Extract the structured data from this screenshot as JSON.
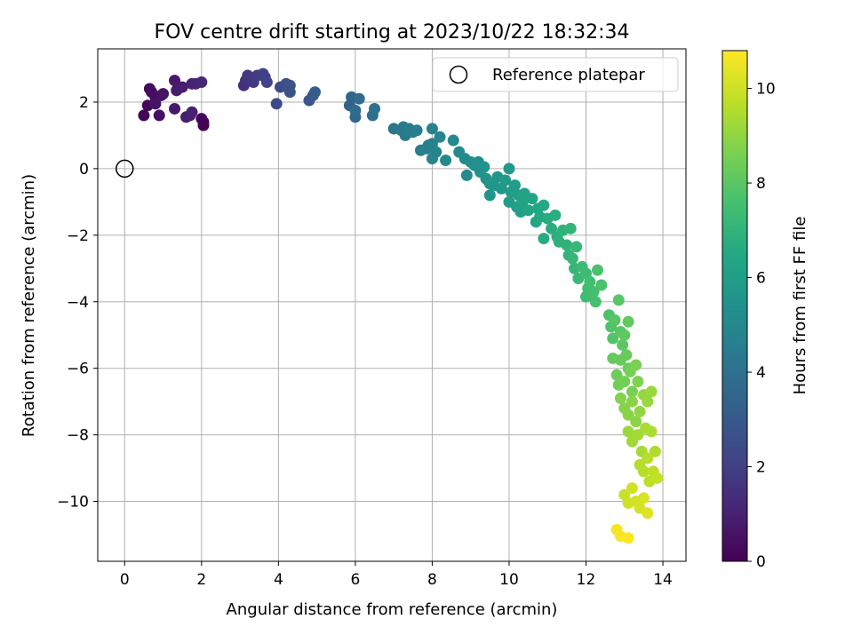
{
  "chart_data": {
    "type": "scatter",
    "title": "FOV centre drift starting at 2023/10/22 18:32:34",
    "xlabel": "Angular distance from reference (arcmin)",
    "ylabel": "Rotation from reference (arcmin)",
    "xlim": [
      -0.7,
      14.6
    ],
    "ylim": [
      -11.8,
      3.6
    ],
    "xticks": [
      0,
      2,
      4,
      6,
      8,
      10,
      12,
      14
    ],
    "yticks": [
      -10,
      -8,
      -6,
      -4,
      -2,
      0,
      2
    ],
    "xtick_labels": [
      "0",
      "2",
      "4",
      "6",
      "8",
      "10",
      "12",
      "14"
    ],
    "ytick_labels": [
      "−10",
      "−8",
      "−6",
      "−4",
      "−2",
      "0",
      "2"
    ],
    "grid": true,
    "legend": {
      "placement": "top-right",
      "entries": [
        {
          "label": "Reference platepar",
          "marker": "open-circle"
        }
      ]
    },
    "reference_point": {
      "x": 0,
      "y": 0
    },
    "colorbar": {
      "label": "Hours from first FF file",
      "colormap": "viridis",
      "range": [
        0,
        10.8
      ],
      "ticks": [
        0,
        2,
        4,
        6,
        8,
        10
      ],
      "tick_labels": [
        "0",
        "2",
        "4",
        "6",
        "8",
        "10"
      ]
    },
    "color_meaning": "hours",
    "points": [
      {
        "x": 0.5,
        "y": 1.6,
        "c": 0.1
      },
      {
        "x": 0.6,
        "y": 1.9,
        "c": 0.2
      },
      {
        "x": 0.65,
        "y": 2.4,
        "c": 0.3
      },
      {
        "x": 0.7,
        "y": 2.3,
        "c": 0.35
      },
      {
        "x": 0.8,
        "y": 2.15,
        "c": 0.4
      },
      {
        "x": 0.9,
        "y": 1.6,
        "c": 0.45
      },
      {
        "x": 0.95,
        "y": 2.2,
        "c": 0.5
      },
      {
        "x": 1.0,
        "y": 2.25,
        "c": 0.55
      },
      {
        "x": 0.8,
        "y": 1.95,
        "c": 0.6
      },
      {
        "x": 1.3,
        "y": 1.8,
        "c": 0.7
      },
      {
        "x": 1.3,
        "y": 2.65,
        "c": 0.75
      },
      {
        "x": 1.35,
        "y": 2.35,
        "c": 0.8
      },
      {
        "x": 1.5,
        "y": 2.45,
        "c": 0.85
      },
      {
        "x": 1.6,
        "y": 1.55,
        "c": 0.9
      },
      {
        "x": 1.7,
        "y": 1.6,
        "c": 0.95
      },
      {
        "x": 1.75,
        "y": 1.7,
        "c": 1.0
      },
      {
        "x": 1.75,
        "y": 2.55,
        "c": 1.05
      },
      {
        "x": 1.85,
        "y": 2.55,
        "c": 1.1
      },
      {
        "x": 2.0,
        "y": 2.6,
        "c": 1.2
      },
      {
        "x": 2.0,
        "y": 1.5,
        "c": 0.25
      },
      {
        "x": 2.05,
        "y": 1.4,
        "c": 0.15
      },
      {
        "x": 2.05,
        "y": 1.3,
        "c": 0.05
      },
      {
        "x": 3.1,
        "y": 2.5,
        "c": 1.5
      },
      {
        "x": 3.15,
        "y": 2.65,
        "c": 1.6
      },
      {
        "x": 3.2,
        "y": 2.8,
        "c": 1.7
      },
      {
        "x": 3.35,
        "y": 2.6,
        "c": 1.8
      },
      {
        "x": 3.45,
        "y": 2.8,
        "c": 1.9
      },
      {
        "x": 3.6,
        "y": 2.85,
        "c": 2.0
      },
      {
        "x": 3.65,
        "y": 2.75,
        "c": 2.1
      },
      {
        "x": 3.7,
        "y": 2.6,
        "c": 2.2
      },
      {
        "x": 3.95,
        "y": 1.95,
        "c": 2.4
      },
      {
        "x": 4.05,
        "y": 2.45,
        "c": 2.5
      },
      {
        "x": 4.2,
        "y": 2.55,
        "c": 2.6
      },
      {
        "x": 4.3,
        "y": 2.5,
        "c": 2.7
      },
      {
        "x": 4.3,
        "y": 2.3,
        "c": 2.8
      },
      {
        "x": 4.8,
        "y": 2.05,
        "c": 2.9
      },
      {
        "x": 4.9,
        "y": 2.2,
        "c": 3.0
      },
      {
        "x": 4.95,
        "y": 2.3,
        "c": 3.1
      },
      {
        "x": 5.85,
        "y": 1.9,
        "c": 3.4
      },
      {
        "x": 5.9,
        "y": 2.15,
        "c": 3.5
      },
      {
        "x": 6.0,
        "y": 1.55,
        "c": 3.6
      },
      {
        "x": 6.0,
        "y": 1.75,
        "c": 3.7
      },
      {
        "x": 6.1,
        "y": 2.1,
        "c": 3.8
      },
      {
        "x": 6.45,
        "y": 1.6,
        "c": 3.9
      },
      {
        "x": 6.5,
        "y": 1.8,
        "c": 4.0
      },
      {
        "x": 7.0,
        "y": 1.2,
        "c": 4.2
      },
      {
        "x": 7.2,
        "y": 1.15,
        "c": 4.3
      },
      {
        "x": 7.25,
        "y": 1.25,
        "c": 4.35
      },
      {
        "x": 7.3,
        "y": 1.0,
        "c": 4.4
      },
      {
        "x": 7.4,
        "y": 1.2,
        "c": 4.45
      },
      {
        "x": 7.5,
        "y": 1.1,
        "c": 4.5
      },
      {
        "x": 7.6,
        "y": 1.15,
        "c": 4.55
      },
      {
        "x": 7.7,
        "y": 0.55,
        "c": 4.6
      },
      {
        "x": 7.85,
        "y": 0.6,
        "c": 4.65
      },
      {
        "x": 7.9,
        "y": 0.7,
        "c": 4.7
      },
      {
        "x": 8.0,
        "y": 0.75,
        "c": 4.75
      },
      {
        "x": 8.0,
        "y": 1.2,
        "c": 4.8
      },
      {
        "x": 8.0,
        "y": 0.3,
        "c": 4.85
      },
      {
        "x": 8.1,
        "y": 0.5,
        "c": 4.9
      },
      {
        "x": 8.2,
        "y": 0.95,
        "c": 4.95
      },
      {
        "x": 8.35,
        "y": 0.25,
        "c": 5.0
      },
      {
        "x": 8.55,
        "y": 0.85,
        "c": 5.05
      },
      {
        "x": 8.7,
        "y": 0.5,
        "c": 5.1
      },
      {
        "x": 8.85,
        "y": 0.3,
        "c": 5.15
      },
      {
        "x": 8.9,
        "y": -0.2,
        "c": 5.2
      },
      {
        "x": 9.0,
        "y": 0.2,
        "c": 5.25
      },
      {
        "x": 9.1,
        "y": 0.1,
        "c": 5.3
      },
      {
        "x": 9.2,
        "y": 0.2,
        "c": 5.35
      },
      {
        "x": 9.25,
        "y": -0.1,
        "c": 5.4
      },
      {
        "x": 9.35,
        "y": 0.05,
        "c": 5.45
      },
      {
        "x": 9.4,
        "y": -0.3,
        "c": 5.5
      },
      {
        "x": 9.5,
        "y": -0.45,
        "c": 5.55
      },
      {
        "x": 9.5,
        "y": -0.8,
        "c": 5.6
      },
      {
        "x": 9.6,
        "y": -0.5,
        "c": 5.65
      },
      {
        "x": 9.7,
        "y": -0.25,
        "c": 5.7
      },
      {
        "x": 9.8,
        "y": -0.6,
        "c": 5.75
      },
      {
        "x": 9.9,
        "y": -0.35,
        "c": 5.8
      },
      {
        "x": 10.0,
        "y": 0.0,
        "c": 5.85
      },
      {
        "x": 10.0,
        "y": -1.0,
        "c": 5.9
      },
      {
        "x": 10.05,
        "y": -0.7,
        "c": 5.95
      },
      {
        "x": 10.15,
        "y": -0.5,
        "c": 6.0
      },
      {
        "x": 10.2,
        "y": -1.15,
        "c": 6.05
      },
      {
        "x": 10.25,
        "y": -0.8,
        "c": 6.1
      },
      {
        "x": 10.3,
        "y": -1.3,
        "c": 6.15
      },
      {
        "x": 10.35,
        "y": -1.0,
        "c": 6.2
      },
      {
        "x": 10.4,
        "y": -0.75,
        "c": 6.25
      },
      {
        "x": 10.5,
        "y": -1.25,
        "c": 6.3
      },
      {
        "x": 10.6,
        "y": -0.9,
        "c": 6.35
      },
      {
        "x": 10.7,
        "y": -1.6,
        "c": 6.4
      },
      {
        "x": 10.75,
        "y": -1.2,
        "c": 6.45
      },
      {
        "x": 10.8,
        "y": -1.45,
        "c": 6.5
      },
      {
        "x": 10.9,
        "y": -1.1,
        "c": 6.55
      },
      {
        "x": 11.0,
        "y": -1.5,
        "c": 6.6
      },
      {
        "x": 10.9,
        "y": -2.1,
        "c": 6.65
      },
      {
        "x": 11.1,
        "y": -1.8,
        "c": 6.7
      },
      {
        "x": 11.2,
        "y": -1.4,
        "c": 6.75
      },
      {
        "x": 11.25,
        "y": -2.05,
        "c": 6.8
      },
      {
        "x": 11.3,
        "y": -2.2,
        "c": 6.85
      },
      {
        "x": 11.4,
        "y": -1.85,
        "c": 6.9
      },
      {
        "x": 11.5,
        "y": -2.3,
        "c": 6.95
      },
      {
        "x": 11.55,
        "y": -2.6,
        "c": 7.0
      },
      {
        "x": 11.6,
        "y": -1.8,
        "c": 7.05
      },
      {
        "x": 11.65,
        "y": -2.7,
        "c": 7.1
      },
      {
        "x": 11.7,
        "y": -3.0,
        "c": 7.15
      },
      {
        "x": 11.75,
        "y": -2.35,
        "c": 7.2
      },
      {
        "x": 11.8,
        "y": -3.3,
        "c": 7.25
      },
      {
        "x": 11.9,
        "y": -2.95,
        "c": 7.3
      },
      {
        "x": 12.0,
        "y": -3.15,
        "c": 7.35
      },
      {
        "x": 12.05,
        "y": -3.6,
        "c": 7.4
      },
      {
        "x": 12.0,
        "y": -3.85,
        "c": 7.45
      },
      {
        "x": 12.1,
        "y": -3.4,
        "c": 7.5
      },
      {
        "x": 12.2,
        "y": -3.7,
        "c": 7.55
      },
      {
        "x": 12.25,
        "y": -4.0,
        "c": 7.6
      },
      {
        "x": 12.3,
        "y": -3.05,
        "c": 7.65
      },
      {
        "x": 12.4,
        "y": -3.5,
        "c": 7.7
      },
      {
        "x": 12.6,
        "y": -4.4,
        "c": 7.75
      },
      {
        "x": 12.65,
        "y": -4.75,
        "c": 7.8
      },
      {
        "x": 12.7,
        "y": -5.1,
        "c": 7.85
      },
      {
        "x": 12.75,
        "y": -4.55,
        "c": 7.9
      },
      {
        "x": 12.85,
        "y": -3.95,
        "c": 7.95
      },
      {
        "x": 12.9,
        "y": -4.9,
        "c": 8.0
      },
      {
        "x": 12.95,
        "y": -5.3,
        "c": 8.05
      },
      {
        "x": 13.0,
        "y": -5.0,
        "c": 8.1
      },
      {
        "x": 13.1,
        "y": -4.6,
        "c": 8.15
      },
      {
        "x": 12.7,
        "y": -5.7,
        "c": 8.2
      },
      {
        "x": 12.9,
        "y": -5.75,
        "c": 8.25
      },
      {
        "x": 13.05,
        "y": -5.6,
        "c": 8.3
      },
      {
        "x": 13.1,
        "y": -6.0,
        "c": 8.35
      },
      {
        "x": 12.8,
        "y": -6.2,
        "c": 8.4
      },
      {
        "x": 12.85,
        "y": -6.5,
        "c": 8.45
      },
      {
        "x": 13.0,
        "y": -6.4,
        "c": 8.5
      },
      {
        "x": 13.15,
        "y": -6.1,
        "c": 8.55
      },
      {
        "x": 13.2,
        "y": -6.7,
        "c": 8.6
      },
      {
        "x": 13.3,
        "y": -5.9,
        "c": 8.65
      },
      {
        "x": 13.35,
        "y": -6.4,
        "c": 8.7
      },
      {
        "x": 12.9,
        "y": -6.9,
        "c": 8.75
      },
      {
        "x": 13.0,
        "y": -7.2,
        "c": 8.8
      },
      {
        "x": 13.1,
        "y": -7.4,
        "c": 8.85
      },
      {
        "x": 13.2,
        "y": -7.0,
        "c": 8.9
      },
      {
        "x": 13.3,
        "y": -7.6,
        "c": 8.95
      },
      {
        "x": 13.4,
        "y": -7.3,
        "c": 9.0
      },
      {
        "x": 13.5,
        "y": -6.8,
        "c": 9.05
      },
      {
        "x": 13.6,
        "y": -7.0,
        "c": 9.1
      },
      {
        "x": 13.7,
        "y": -6.7,
        "c": 9.15
      },
      {
        "x": 13.1,
        "y": -7.9,
        "c": 9.2
      },
      {
        "x": 13.2,
        "y": -8.2,
        "c": 9.25
      },
      {
        "x": 13.35,
        "y": -8.0,
        "c": 9.3
      },
      {
        "x": 13.45,
        "y": -8.5,
        "c": 9.35
      },
      {
        "x": 13.55,
        "y": -7.8,
        "c": 9.4
      },
      {
        "x": 13.7,
        "y": -7.9,
        "c": 9.45
      },
      {
        "x": 13.8,
        "y": -8.5,
        "c": 9.5
      },
      {
        "x": 13.4,
        "y": -8.9,
        "c": 9.55
      },
      {
        "x": 13.5,
        "y": -9.1,
        "c": 9.6
      },
      {
        "x": 13.6,
        "y": -8.7,
        "c": 9.65
      },
      {
        "x": 13.65,
        "y": -9.4,
        "c": 9.7
      },
      {
        "x": 13.75,
        "y": -9.1,
        "c": 9.75
      },
      {
        "x": 13.85,
        "y": -9.3,
        "c": 9.8
      },
      {
        "x": 13.0,
        "y": -9.8,
        "c": 9.9
      },
      {
        "x": 13.1,
        "y": -10.05,
        "c": 10.0
      },
      {
        "x": 13.2,
        "y": -9.6,
        "c": 10.05
      },
      {
        "x": 13.3,
        "y": -10.0,
        "c": 10.1
      },
      {
        "x": 13.4,
        "y": -10.2,
        "c": 10.15
      },
      {
        "x": 13.5,
        "y": -9.9,
        "c": 10.2
      },
      {
        "x": 13.6,
        "y": -10.35,
        "c": 10.3
      },
      {
        "x": 12.8,
        "y": -10.85,
        "c": 10.6
      },
      {
        "x": 12.9,
        "y": -11.05,
        "c": 10.7
      },
      {
        "x": 13.1,
        "y": -11.1,
        "c": 10.8
      }
    ]
  }
}
